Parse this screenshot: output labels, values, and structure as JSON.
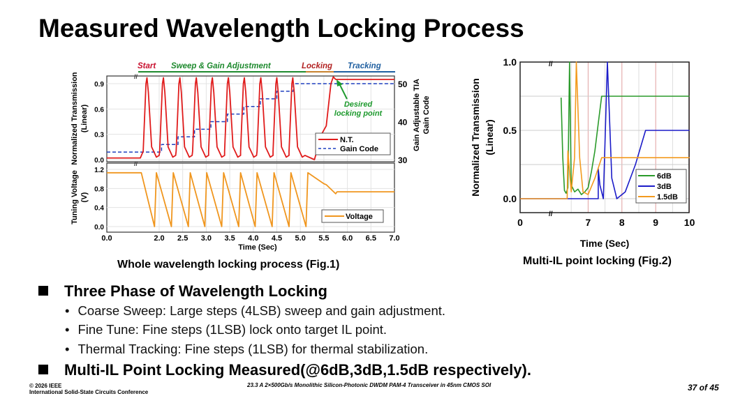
{
  "title": "Measured Wavelength Locking Process",
  "bullets": [
    {
      "text": "Three Phase of Wavelength Locking",
      "sub": [
        "Coarse Sweep: Large steps (4LSB) sweep and gain adjustment.",
        "Fine Tune: Fine steps (1LSB) lock onto target IL point.",
        "Thermal Tracking: Fine steps (1LSB) for thermal stabilization."
      ]
    },
    {
      "text": "Multi-IL Point Locking Measured(@6dB,3dB,1.5dB respectively).",
      "sub": []
    }
  ],
  "footer": {
    "left1": "© 2026 IEEE",
    "left2": "International Solid-State Circuits Conference",
    "center": "23.3 A 2×500Gb/s Monolithic Silicon-Photonic DWDM PAM-4 Transceiver in 45nm CMOS SOI",
    "page": "37 of 45"
  },
  "chart_data": [
    {
      "type": "line",
      "caption": "Whole wavelength locking process (Fig.1)",
      "phases": [
        {
          "label": "Start",
          "color": "#c8102e"
        },
        {
          "label": "Sweep & Gain Adjustment",
          "color": "#1e8a2e"
        },
        {
          "label": "Locking",
          "color": "#b22222"
        },
        {
          "label": "Tracking",
          "color": "#1f5fa0"
        }
      ],
      "annotation": "Desired locking point",
      "annotation_lines": [
        "Desired",
        "locking point"
      ],
      "xlabel": "Time (Sec)",
      "xticks": [
        "0.0",
        "2.0",
        "2.5",
        "3.0",
        "3.5",
        "4.0",
        "4.5",
        "5.0",
        "5.5",
        "6.0",
        "6.5",
        "7.0"
      ],
      "xtick_values": [
        0,
        2,
        2.5,
        3,
        3.5,
        4,
        4.5,
        5,
        5.5,
        6,
        6.5,
        7
      ],
      "top": {
        "ylabel": [
          "Normalized Transmission",
          "(Linear)"
        ],
        "yticks": [
          "0.0",
          "0.3",
          "0.6",
          "0.9"
        ],
        "ytick_values": [
          0,
          0.3,
          0.6,
          0.9
        ],
        "y2label": [
          "Gain Adjustable TIA",
          "Gain Code"
        ],
        "y2ticks": [
          "30",
          "40",
          "50"
        ],
        "y2tick_values": [
          30,
          40,
          50
        ],
        "series": [
          {
            "name": "N.T.",
            "color": "#e01b1b",
            "peaks": [
              1.74,
              2.09,
              2.44,
              2.79,
              3.13,
              3.47,
              3.81,
              4.16,
              4.5,
              4.84
            ],
            "lock_value": 0.95,
            "lock_time": 5.7
          },
          {
            "name": "Gain Code",
            "color": "#1f3fbf",
            "step_times": [
              2.05,
              2.4,
              2.75,
              3.1,
              3.45,
              3.8,
              4.15,
              4.5,
              4.85
            ],
            "start": 32,
            "step": 2
          }
        ]
      },
      "bottom": {
        "ylabel": [
          "Tuning Voltage",
          "(V)"
        ],
        "yticks": [
          "0.0",
          "0.4",
          "0.8",
          "1.2"
        ],
        "ytick_values": [
          0,
          0.4,
          0.8,
          1.2
        ],
        "series": [
          {
            "name": "Voltage",
            "color": "#f0961e",
            "minima": [
              1.9,
              2.26,
              2.62,
              2.97,
              3.33,
              3.69,
              4.04,
              4.4,
              4.76,
              5.12
            ],
            "high": 1.13,
            "final": 0.73
          }
        ]
      }
    },
    {
      "type": "line",
      "caption": "Multi-IL point locking (Fig.2)",
      "xlabel": "Time (Sec)",
      "ylabel": [
        "Normalized Transmission",
        "(Linear)"
      ],
      "xticks": [
        "0",
        "7",
        "8",
        "9",
        "10"
      ],
      "xtick_values": [
        0,
        7,
        8,
        9,
        10
      ],
      "yticks": [
        "0.0",
        "0.5",
        "1.0"
      ],
      "ytick_values": [
        0,
        0.5,
        1.0
      ],
      "series": [
        {
          "name": "6dB",
          "color": "#2a9a2a",
          "points": [
            [
              6.2,
              0.74
            ],
            [
              6.25,
              0.3
            ],
            [
              6.3,
              0.06
            ],
            [
              6.35,
              0.04
            ],
            [
              6.4,
              0.08
            ],
            [
              6.45,
              1.0
            ],
            [
              6.5,
              0.1
            ],
            [
              6.6,
              0.05
            ],
            [
              6.7,
              0.07
            ],
            [
              6.8,
              0.03
            ],
            [
              6.9,
              0.05
            ],
            [
              7.0,
              0.08
            ],
            [
              7.1,
              0.2
            ],
            [
              7.2,
              0.35
            ],
            [
              7.3,
              0.55
            ],
            [
              7.4,
              0.75
            ],
            [
              10,
              0.75
            ]
          ]
        },
        {
          "name": "3dB",
          "color": "#1c1cc8",
          "points": [
            [
              0,
              0
            ],
            [
              7.3,
              0
            ],
            [
              7.3,
              0.22
            ],
            [
              7.35,
              0.1
            ],
            [
              7.45,
              0
            ],
            [
              7.57,
              1.0
            ],
            [
              7.7,
              0.15
            ],
            [
              7.85,
              0
            ],
            [
              8.1,
              0.05
            ],
            [
              8.4,
              0.25
            ],
            [
              8.7,
              0.5
            ],
            [
              10,
              0.5
            ]
          ]
        },
        {
          "name": "1.5dB",
          "color": "#f39a1e",
          "points": [
            [
              0,
              0
            ],
            [
              6.38,
              0
            ],
            [
              6.4,
              0.35
            ],
            [
              6.5,
              0.05
            ],
            [
              6.6,
              0.3
            ],
            [
              6.65,
              1.0
            ],
            [
              6.75,
              0.3
            ],
            [
              6.85,
              0.05
            ],
            [
              7.0,
              0.03
            ],
            [
              7.2,
              0.15
            ],
            [
              7.4,
              0.3
            ],
            [
              10,
              0.3
            ]
          ]
        }
      ]
    }
  ]
}
